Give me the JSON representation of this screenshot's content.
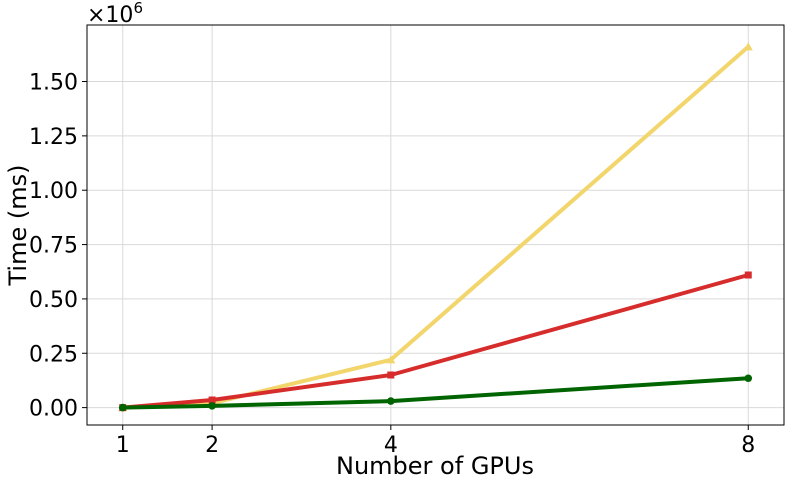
{
  "chart_data": {
    "type": "line",
    "title": "",
    "xlabel": "Number of GPUs",
    "ylabel": "Time (ms)",
    "y_offset_label": "×10",
    "y_offset_exponent": "6",
    "x": [
      1,
      2,
      4,
      8
    ],
    "x_ticks": [
      "1",
      "2",
      "4",
      "8"
    ],
    "y_ticks": [
      "0.00",
      "0.25",
      "0.50",
      "0.75",
      "1.00",
      "1.25",
      "1.50"
    ],
    "xlim": [
      0.6,
      8.4
    ],
    "ylim": [
      -0.08,
      1.76
    ],
    "grid": true,
    "legend": "none",
    "series": [
      {
        "color": "#f2d56b",
        "marker": "triangle",
        "values": [
          0.0,
          0.02,
          0.22,
          1.66
        ]
      },
      {
        "color": "#d62c2c",
        "marker": "square",
        "values": [
          0.0,
          0.035,
          0.15,
          0.61
        ]
      },
      {
        "color": "#006400",
        "marker": "circle",
        "values": [
          0.0,
          0.008,
          0.03,
          0.135
        ]
      }
    ]
  }
}
